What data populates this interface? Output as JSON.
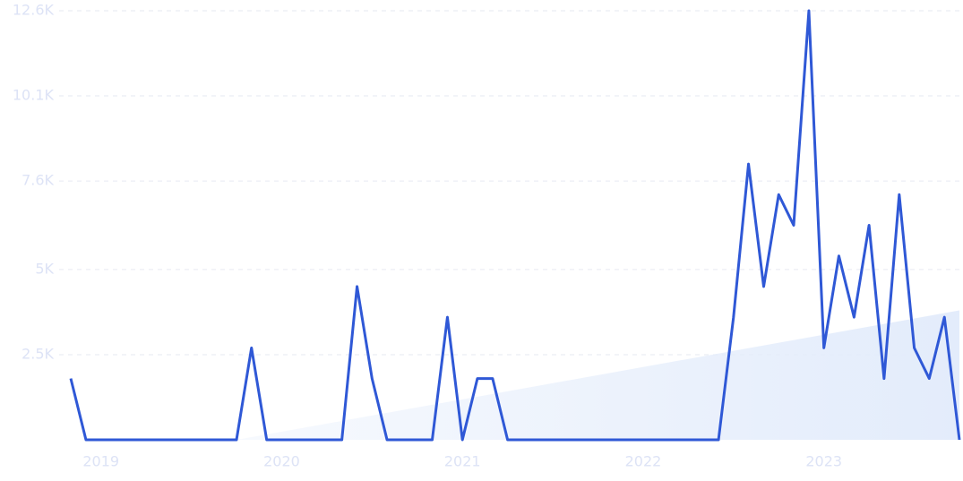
{
  "chart_data": {
    "type": "line",
    "x": [
      2018.833,
      2018.917,
      2019.0,
      2019.083,
      2019.167,
      2019.25,
      2019.333,
      2019.417,
      2019.5,
      2019.583,
      2019.667,
      2019.75,
      2019.833,
      2019.917,
      2020.0,
      2020.083,
      2020.167,
      2020.25,
      2020.333,
      2020.417,
      2020.5,
      2020.583,
      2020.667,
      2020.75,
      2020.833,
      2020.917,
      2021.0,
      2021.083,
      2021.167,
      2021.25,
      2021.333,
      2021.417,
      2021.5,
      2021.583,
      2021.667,
      2021.75,
      2021.833,
      2021.917,
      2022.0,
      2022.083,
      2022.167,
      2022.25,
      2022.333,
      2022.417,
      2022.5,
      2022.583,
      2022.667,
      2022.75,
      2022.833,
      2022.917,
      2023.0,
      2023.083,
      2023.167,
      2023.25,
      2023.333,
      2023.417,
      2023.5,
      2023.583,
      2023.667,
      2023.75
    ],
    "series": [
      {
        "color": "#2f58d6",
        "values": [
          1800,
          0,
          0,
          0,
          0,
          0,
          0,
          0,
          0,
          0,
          0,
          0,
          2700,
          0,
          0,
          0,
          0,
          0,
          0,
          4500,
          1800,
          0,
          0,
          0,
          0,
          3600,
          0,
          1800,
          1800,
          0,
          0,
          0,
          0,
          0,
          0,
          0,
          0,
          0,
          0,
          0,
          0,
          0,
          0,
          0,
          3600,
          8100,
          4500,
          7200,
          6300,
          12600,
          2700,
          5400,
          3600,
          6300,
          1800,
          7200,
          2700,
          1800,
          3600,
          0
        ]
      }
    ],
    "trend": {
      "x": [
        2019.75,
        2023.75
      ],
      "values": [
        0,
        3800
      ],
      "color": "#dbe7fb"
    },
    "xlim": [
      2018.833,
      2023.75
    ],
    "xticks": [
      2019,
      2020,
      2021,
      2022,
      2023
    ],
    "ylim": [
      0,
      12600
    ],
    "yticks": [
      {
        "value": 2500,
        "label": "2.5K"
      },
      {
        "value": 5000,
        "label": "5K"
      },
      {
        "value": 7600,
        "label": "7.6K"
      },
      {
        "value": 10100,
        "label": "10.1K"
      },
      {
        "value": 12600,
        "label": "12.6K"
      }
    ],
    "grid": true
  }
}
